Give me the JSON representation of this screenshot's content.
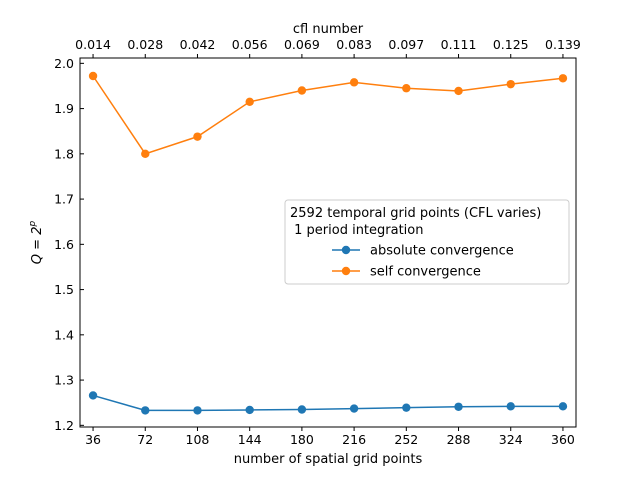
{
  "chart_data": {
    "type": "line",
    "top_axis_label": "cfl number",
    "top_tick_labels": [
      "0.014",
      "0.028",
      "0.042",
      "0.056",
      "0.069",
      "0.083",
      "0.097",
      "0.111",
      "0.125",
      "0.139"
    ],
    "xlabel": "number of spatial grid points",
    "ylabel": "Q = 2^p",
    "x": [
      36,
      72,
      108,
      144,
      180,
      216,
      252,
      288,
      324,
      360
    ],
    "xticks": [
      "36",
      "72",
      "108",
      "144",
      "180",
      "216",
      "252",
      "288",
      "324",
      "360"
    ],
    "ylim": [
      1.2,
      2.0
    ],
    "yticks": [
      "1.2",
      "1.3",
      "1.4",
      "1.5",
      "1.6",
      "1.7",
      "1.8",
      "1.9",
      "2.0"
    ],
    "grid": false,
    "legend_placement": "center-right",
    "legend_title": "2592 temporal grid points (CFL varies)\n 1 period integration",
    "series": [
      {
        "name": "absolute convergence",
        "color": "#1f77b4",
        "values": [
          1.266,
          1.233,
          1.233,
          1.234,
          1.235,
          1.237,
          1.239,
          1.241,
          1.242,
          1.242
        ]
      },
      {
        "name": "self convergence",
        "color": "#ff7f0e",
        "values": [
          1.972,
          1.8,
          1.838,
          1.915,
          1.94,
          1.958,
          1.945,
          1.939,
          1.954,
          1.967
        ]
      }
    ]
  }
}
